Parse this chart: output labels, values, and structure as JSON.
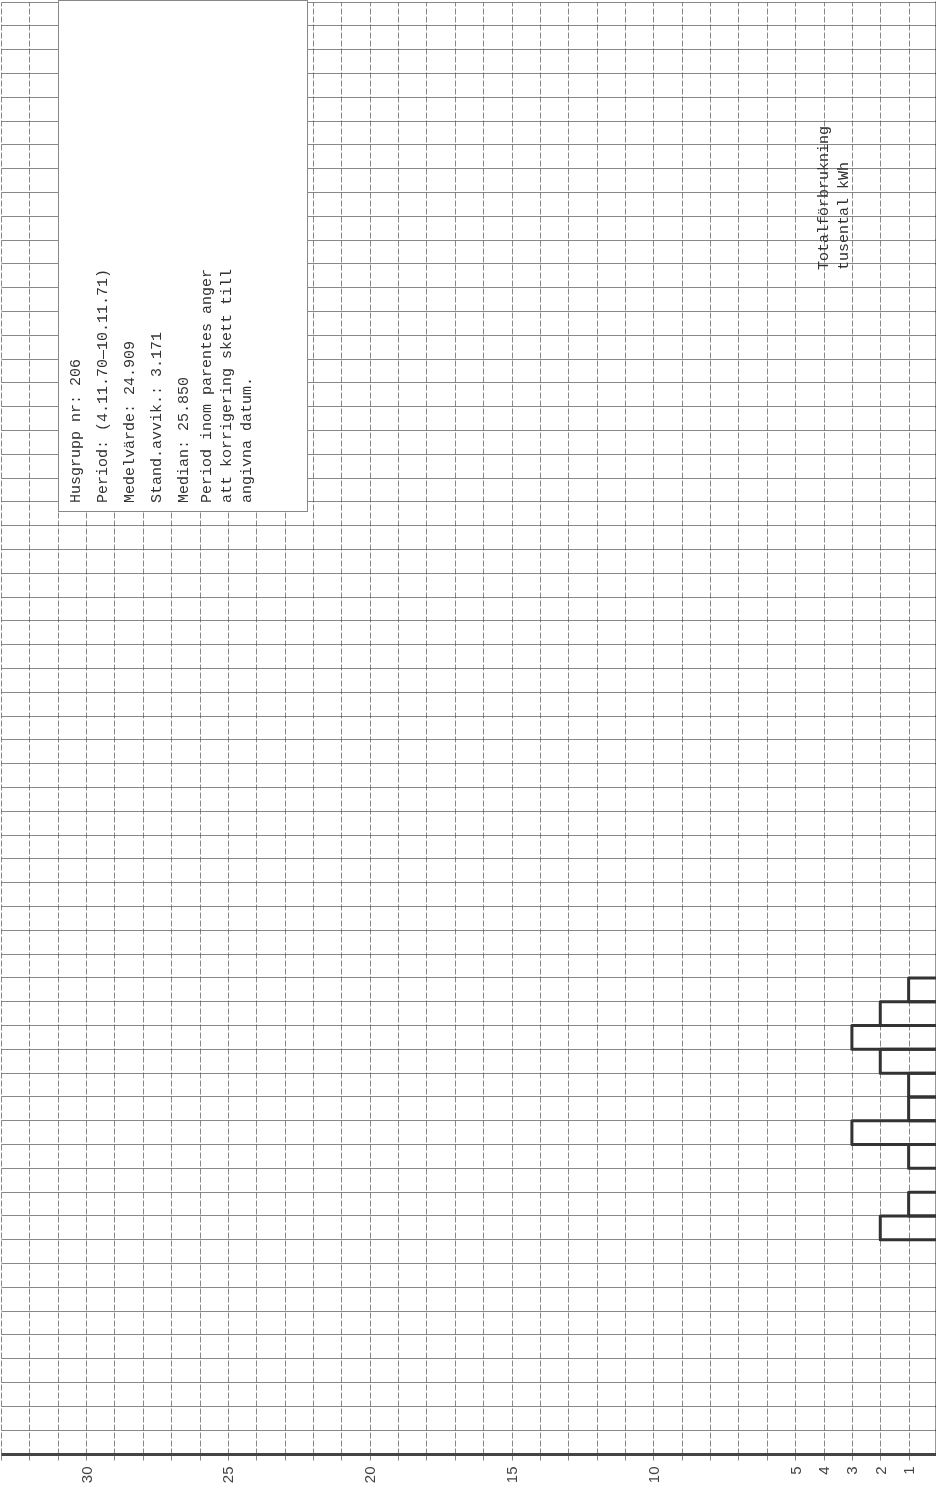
{
  "chart_data": {
    "type": "bar",
    "orientation": "horizontal",
    "ylabel": "Totalförbrukning tusental kWh",
    "annotations": [
      "Husgrupp nr: 206",
      "Period: (4.11.70—10.11.71)",
      "Medelvärde: 24.909",
      "Stand.avvik.: 3.171",
      "Median: 25.850",
      "Period inom parentes anger att korrigering skett till angivna datum."
    ],
    "categories": [
      null,
      null,
      null,
      null,
      null,
      null,
      null,
      null,
      null,
      null,
      null,
      null,
      null,
      null,
      null,
      null,
      null,
      null,
      null,
      null,
      null,
      null,
      null,
      null,
      null,
      null,
      null,
      null,
      null,
      null,
      null,
      null,
      null,
      null,
      null,
      null,
      null,
      null,
      null,
      null,
      null,
      null,
      null,
      null,
      null,
      null,
      null,
      null,
      null,
      null,
      null,
      null,
      null,
      null,
      null,
      null,
      null,
      null,
      null,
      null,
      null
    ],
    "values": [
      0,
      0,
      0,
      0,
      0,
      0,
      0,
      0,
      0,
      0,
      0,
      0,
      0,
      0,
      0,
      0,
      0,
      0,
      0,
      0,
      0,
      0,
      0,
      0,
      0,
      0,
      0,
      0,
      0,
      0,
      0,
      0,
      0,
      0,
      0,
      0,
      0,
      0,
      0,
      0,
      0,
      1,
      2,
      3,
      2,
      1,
      1,
      3,
      1,
      0,
      1,
      2,
      0,
      0,
      0,
      0,
      0,
      0,
      0,
      0,
      0
    ],
    "color": "#333333",
    "xlim": [
      33,
      0
    ],
    "xticks": [
      {
        "value": 33,
        "label": null
      },
      {
        "value": 32,
        "label": null
      },
      {
        "value": 31,
        "label": null
      },
      30,
      {
        "value": 29,
        "label": null
      },
      {
        "value": 28,
        "label": null
      },
      {
        "value": 27,
        "label": null
      },
      {
        "value": 26,
        "label": null
      },
      25,
      {
        "value": 24,
        "label": null
      },
      {
        "value": 23,
        "label": null
      },
      {
        "value": 22,
        "label": null
      },
      {
        "value": 21,
        "label": null
      },
      20,
      {
        "value": 19,
        "label": null
      },
      {
        "value": 18,
        "label": null
      },
      {
        "value": 17,
        "label": null
      },
      {
        "value": 16,
        "label": null
      },
      15,
      {
        "value": 14,
        "label": null
      },
      {
        "value": 13,
        "label": null
      },
      {
        "value": 12,
        "label": null
      },
      {
        "value": 11,
        "label": null
      },
      10,
      {
        "value": 9,
        "label": null
      },
      {
        "value": 8,
        "label": null
      },
      {
        "value": 7,
        "label": null
      },
      {
        "value": 6,
        "label": null
      },
      5,
      4,
      3,
      2,
      1
    ],
    "grid": true,
    "tick_labels": "x"
  }
}
